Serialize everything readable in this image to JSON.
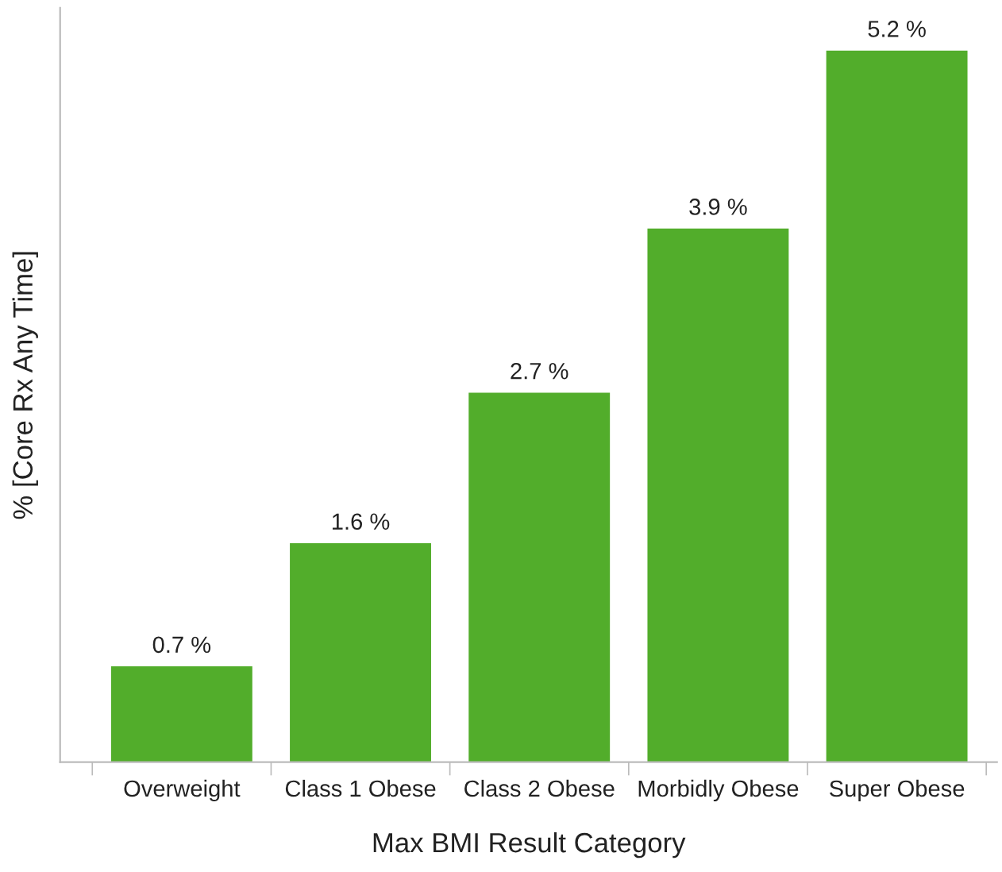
{
  "chart_data": {
    "type": "bar",
    "xlabel": "Max BMI Result Category",
    "ylabel": "% [Core Rx Any Time]",
    "categories": [
      "Overweight",
      "Class 1 Obese",
      "Class 2 Obese",
      "Morbidly Obese",
      "Super Obese"
    ],
    "values": [
      0.7,
      1.6,
      2.7,
      3.9,
      5.2
    ],
    "color": "#52ad2b",
    "value_labels": [
      "0.7 %",
      "1.6 %",
      "2.7 %",
      "3.9 %",
      "5.2 %"
    ],
    "tick_labels": "x",
    "grid": false,
    "legend": false
  }
}
